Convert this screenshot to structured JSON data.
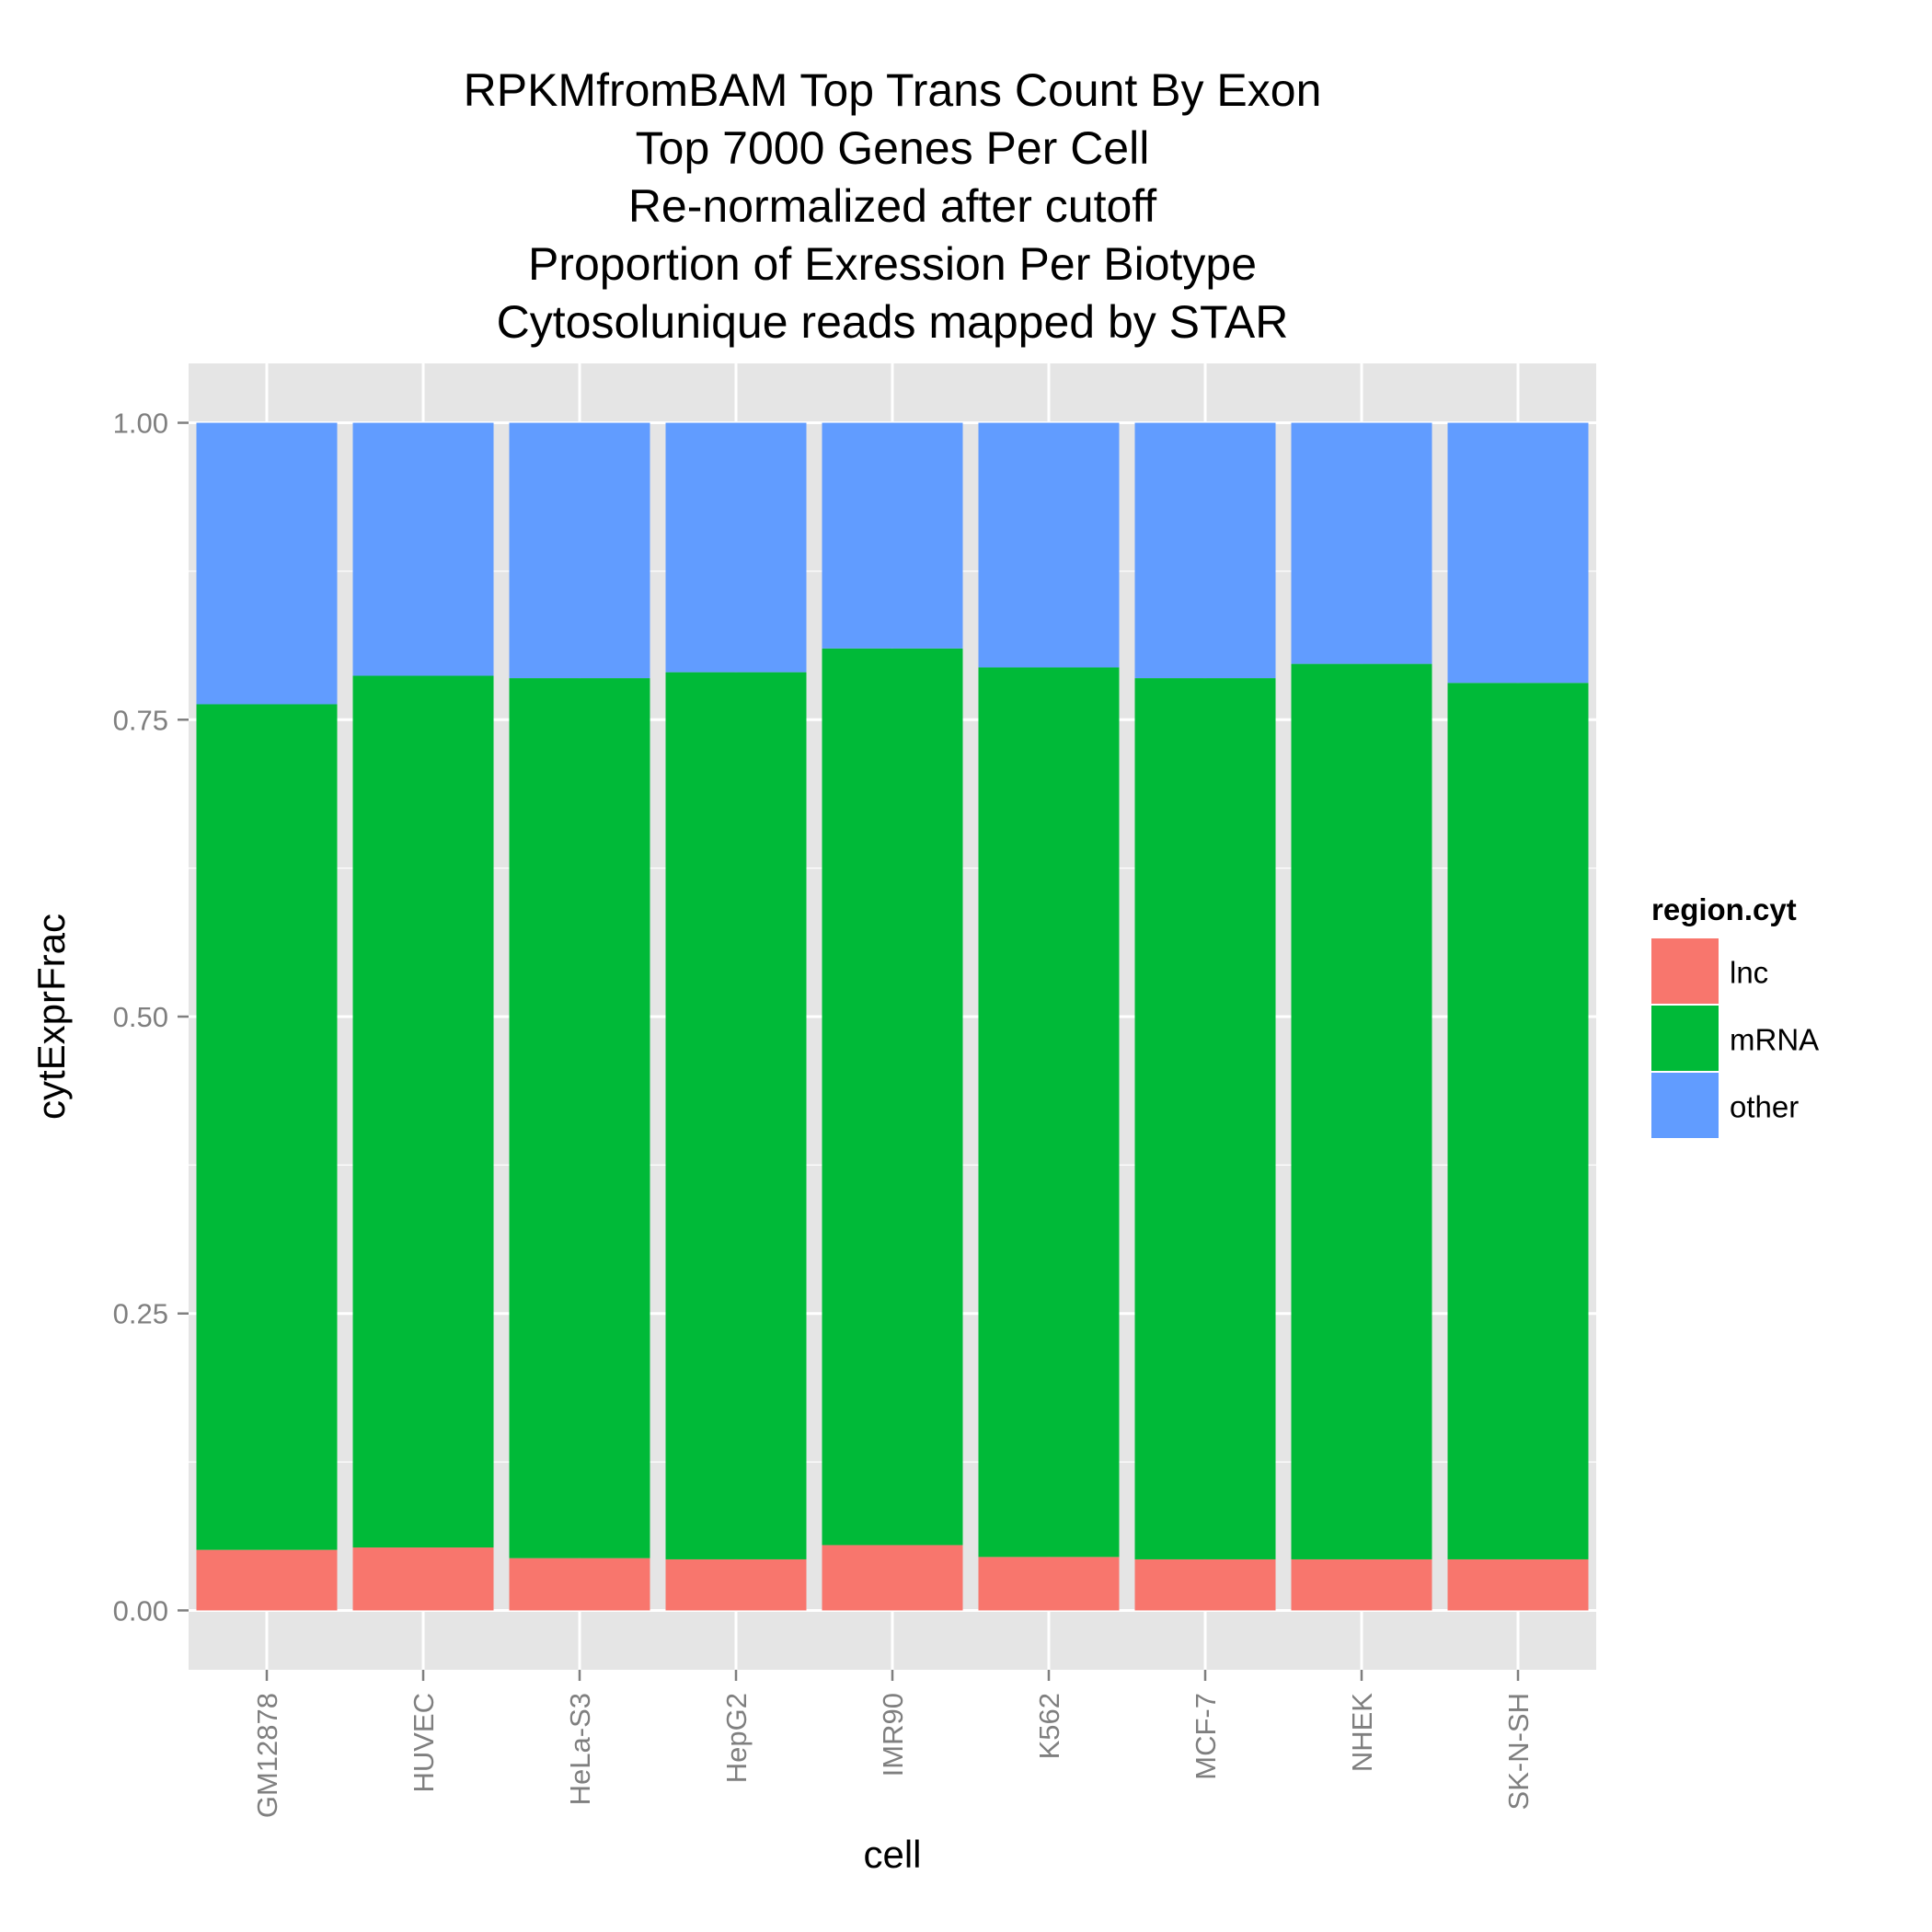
{
  "chart_data": {
    "type": "bar",
    "stacked": true,
    "title_lines": [
      "RPKMfromBAM Top Trans Count By Exon",
      "Top 7000 Genes Per Cell",
      "Re-normalized after cutoff",
      "Proportion of Exression Per Biotype",
      "Cytosolunique reads mapped by STAR"
    ],
    "xlabel": "cell",
    "ylabel": "cytExprFrac",
    "categories": [
      "GM12878",
      "HUVEC",
      "HeLa-S3",
      "HepG2",
      "IMR90",
      "K562",
      "MCF-7",
      "NHEK",
      "SK-N-SH"
    ],
    "series": [
      {
        "name": "lnc",
        "color": "#F8766D",
        "values": [
          0.051,
          0.053,
          0.044,
          0.043,
          0.055,
          0.045,
          0.043,
          0.043,
          0.043
        ]
      },
      {
        "name": "mRNA",
        "color": "#00BA38",
        "values": [
          0.712,
          0.734,
          0.741,
          0.747,
          0.755,
          0.749,
          0.742,
          0.754,
          0.738
        ]
      },
      {
        "name": "other",
        "color": "#619CFF",
        "values": [
          0.237,
          0.213,
          0.215,
          0.21,
          0.19,
          0.206,
          0.215,
          0.203,
          0.219
        ]
      }
    ],
    "ylim": [
      -0.05,
      1.05
    ],
    "yticks": [
      0.0,
      0.25,
      0.5,
      0.75,
      1.0
    ],
    "ytick_labels": [
      "0.00",
      "0.25",
      "0.50",
      "0.75",
      "1.00"
    ],
    "grid": true,
    "legend": {
      "title": "region.cyt",
      "position": "right"
    },
    "panel_color": "#E5E5E5",
    "grid_color": "#FFFFFF"
  }
}
